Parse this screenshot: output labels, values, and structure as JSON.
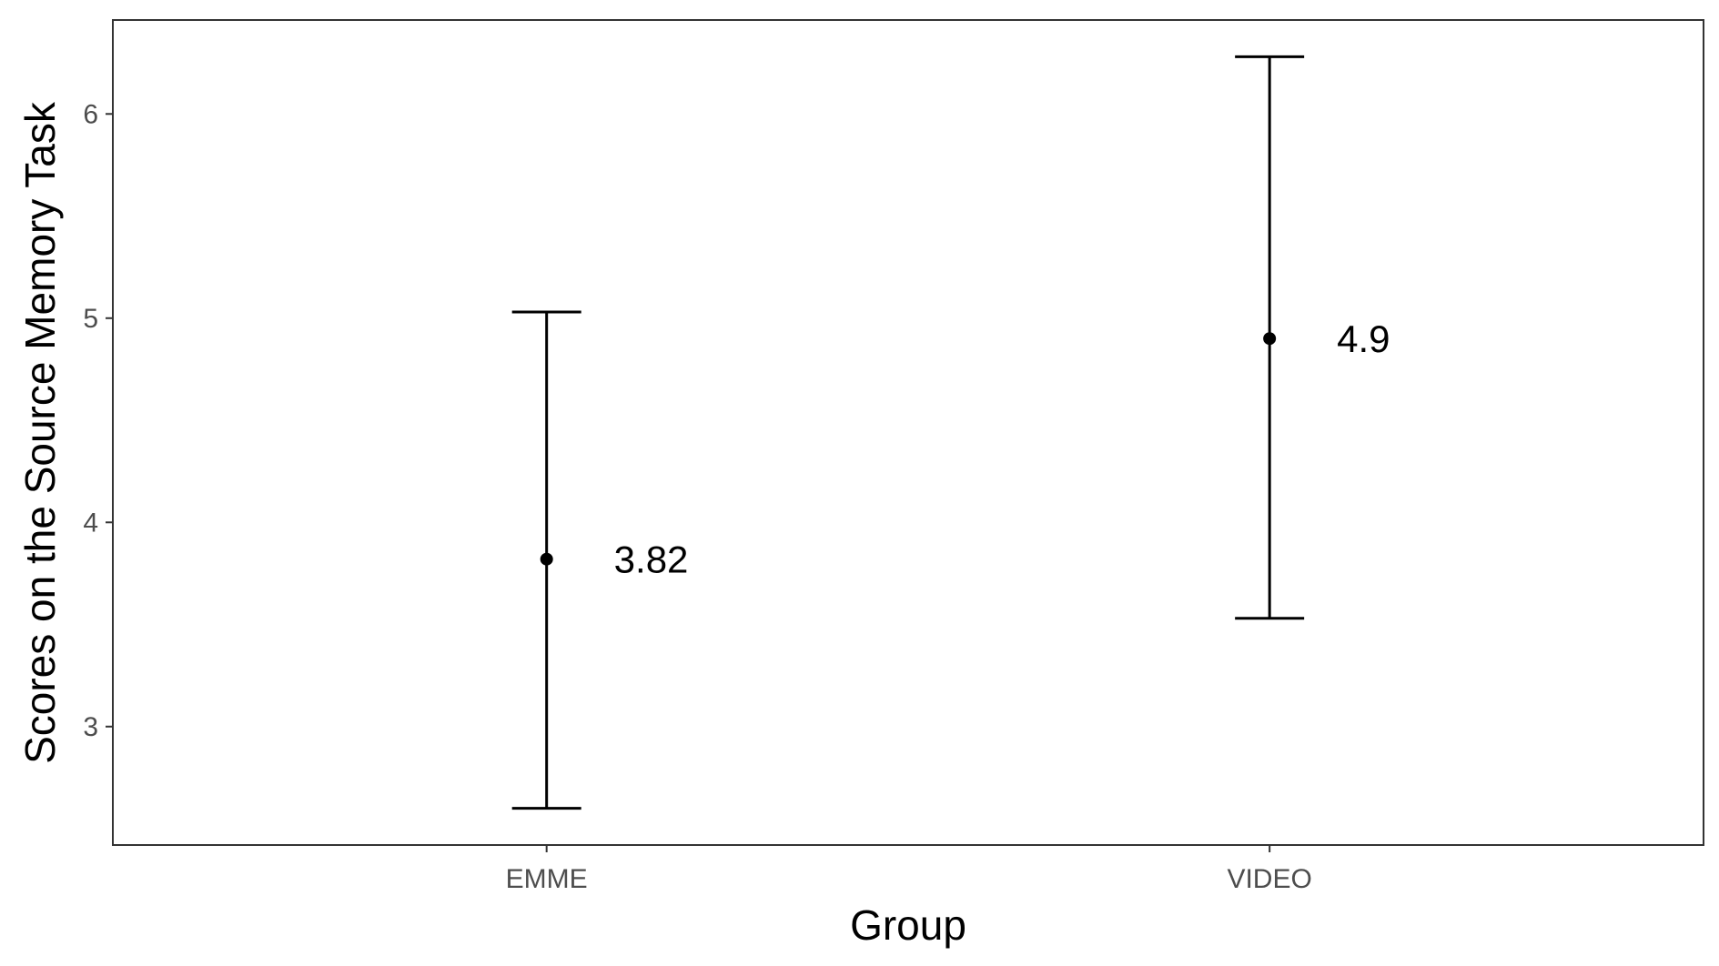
{
  "chart_data": {
    "type": "errorbar",
    "categories": [
      "EMME",
      "VIDEO"
    ],
    "series": [
      {
        "values": [
          3.82,
          4.9
        ],
        "lower": [
          2.6,
          3.53
        ],
        "upper": [
          5.03,
          6.28
        ],
        "labels": [
          "3.82",
          "4.9"
        ]
      }
    ],
    "title": "",
    "xlabel": "Group",
    "ylabel": "Scores on the Source Memory Task",
    "ylim": [
      2.42,
      6.46
    ],
    "yticks": [
      3,
      4,
      5,
      6
    ],
    "ytick_labels": [
      "3",
      "4",
      "5",
      "6"
    ],
    "grid": false,
    "legend": "none",
    "colors": {
      "mark": "#000000",
      "frame": "#333333",
      "tick_text": "#4d4d4d",
      "background": "#ffffff"
    }
  }
}
